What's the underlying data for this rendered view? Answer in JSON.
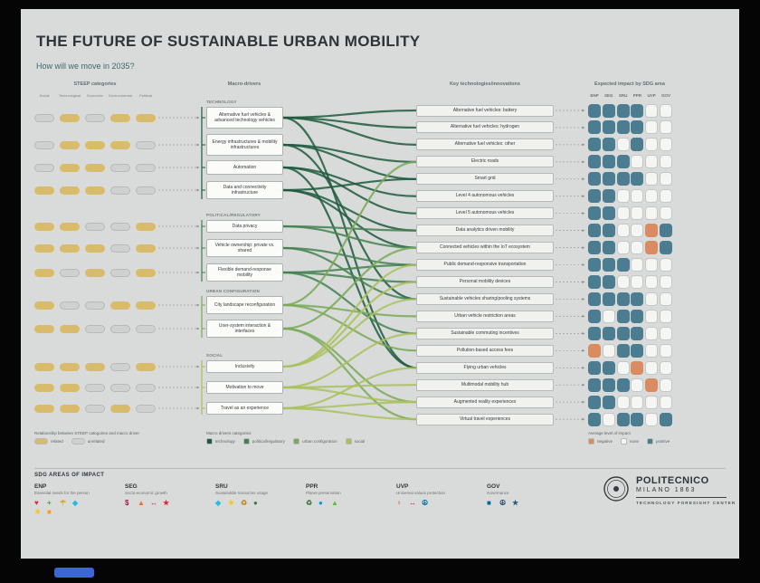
{
  "header": {
    "title": "THE FUTURE OF SUSTAINABLE URBAN MOBILITY",
    "subtitle": "How will we move in 2035?"
  },
  "columns": {
    "steep": "STEEP categories",
    "drivers": "Macro-drivers",
    "tech": "Key technologies/innovations",
    "impact": "Expected impact by SDG area"
  },
  "steep": {
    "categories": [
      "Social",
      "Technological",
      "Economic",
      "Environmental",
      "Political"
    ],
    "related_color": "#d8bc6b",
    "unrelated_color": "#ced1d0"
  },
  "driver_groups": [
    {
      "name": "TECHNOLOGY",
      "color": "#1f5a3d",
      "drivers": [
        {
          "label": "Alternative fuel vehicles & advanced technology vehicles",
          "steep": [
            0,
            1,
            0,
            1,
            1
          ]
        },
        {
          "label": "Energy infrastructures & mobility infrastructures",
          "steep": [
            0,
            1,
            1,
            1,
            0
          ]
        },
        {
          "label": "Automation",
          "steep": [
            0,
            1,
            1,
            0,
            0
          ]
        },
        {
          "label": "Data and connectivity infrastructure",
          "steep": [
            1,
            1,
            1,
            0,
            0
          ]
        }
      ]
    },
    {
      "name": "POLITICAL/REGULATORY",
      "color": "#43814f",
      "drivers": [
        {
          "label": "Data privacy",
          "steep": [
            1,
            1,
            0,
            0,
            1
          ]
        },
        {
          "label": "Vehicle ownership: private vs. shared",
          "steep": [
            1,
            1,
            1,
            0,
            1
          ]
        },
        {
          "label": "Flexible demand-response mobility",
          "steep": [
            1,
            0,
            1,
            0,
            1
          ]
        }
      ]
    },
    {
      "name": "URBAN CONFIGURATION",
      "color": "#79a957",
      "drivers": [
        {
          "label": "City landscape reconfiguration",
          "steep": [
            1,
            0,
            0,
            1,
            1
          ]
        },
        {
          "label": "User-system interaction & interfaces",
          "steep": [
            1,
            1,
            0,
            0,
            0
          ]
        }
      ]
    },
    {
      "name": "SOCIAL",
      "color": "#aabf5c",
      "drivers": [
        {
          "label": "Inclusivity",
          "steep": [
            1,
            1,
            1,
            0,
            1
          ]
        },
        {
          "label": "Motivation to move",
          "steep": [
            1,
            1,
            0,
            0,
            0
          ]
        },
        {
          "label": "Travel as an experience",
          "steep": [
            1,
            1,
            0,
            1,
            0
          ]
        }
      ]
    }
  ],
  "technologies": [
    "Alternative fuel vehicles: battery",
    "Alternative fuel vehicles: hydrogen",
    "Alternative fuel vehicles: other",
    "Electric roads",
    "Smart grid",
    "Level 4 autonomous vehicles",
    "Level 5 autonomous vehicles",
    "Data analytics driven mobility",
    "Connected vehicles within the IoT ecosystem",
    "Public demand-responsive transportation",
    "Personal mobility devices",
    "Sustainable vehicles sharing/pooling systems",
    "Urban vehicle restriction areas",
    "Sustainable commuting incentives",
    "Pollution-based access fees",
    "Flying urban vehicles",
    "Multimodal mobility hub",
    "Augmented reality experiences",
    "Virtual travel experiences"
  ],
  "impact": {
    "columns": [
      "ENP",
      "SEG",
      "SRU",
      "PPR",
      "UVP",
      "GOV"
    ],
    "colors": {
      "positive": "#4c7c90",
      "negative": "#db8b60",
      "none": "#f5f6f4"
    },
    "rows": [
      "PPPPNN",
      "PPPPNN",
      "PPNPNN",
      "PPPNNN",
      "PPPPNN",
      "PPNNNN",
      "PPNNNN",
      "PPNNMP",
      "PPNNMP",
      "PPPNNN",
      "PPNNNN",
      "PPPPNN",
      "PNPPNN",
      "PPPPNN",
      "MNPPNN",
      "PPNMNN",
      "PPPNMN",
      "PPNNNN",
      "PNPPNP"
    ]
  },
  "links": [
    [
      0,
      0
    ],
    [
      0,
      1
    ],
    [
      0,
      2
    ],
    [
      0,
      15
    ],
    [
      1,
      3
    ],
    [
      1,
      4
    ],
    [
      1,
      11
    ],
    [
      2,
      5
    ],
    [
      2,
      6
    ],
    [
      2,
      15
    ],
    [
      3,
      4
    ],
    [
      3,
      7
    ],
    [
      3,
      8
    ],
    [
      4,
      7
    ],
    [
      4,
      8
    ],
    [
      5,
      9
    ],
    [
      5,
      11
    ],
    [
      6,
      9
    ],
    [
      6,
      10
    ],
    [
      6,
      13
    ],
    [
      7,
      3
    ],
    [
      7,
      12
    ],
    [
      7,
      14
    ],
    [
      8,
      8
    ],
    [
      8,
      17
    ],
    [
      8,
      18
    ],
    [
      9,
      9
    ],
    [
      9,
      10
    ],
    [
      9,
      11
    ],
    [
      10,
      13
    ],
    [
      10,
      16
    ],
    [
      10,
      17
    ],
    [
      11,
      15
    ],
    [
      11,
      17
    ],
    [
      11,
      18
    ]
  ],
  "legends": {
    "steep": {
      "title": "Relationship between STEEP categories and macro driver",
      "items": [
        {
          "label": "related",
          "color": "#d8bc6b"
        },
        {
          "label": "unrelated",
          "color": "#ced1d0"
        }
      ]
    },
    "drivers": {
      "title": "Macro drivers categories:",
      "items": [
        {
          "label": "technology",
          "color": "#1f5a3d"
        },
        {
          "label": "political/regulatory",
          "color": "#43814f"
        },
        {
          "label": "urban configuration",
          "color": "#79a957"
        },
        {
          "label": "social",
          "color": "#aabf5c"
        }
      ]
    },
    "impact": {
      "title": "Average level of impact",
      "items": [
        {
          "label": "negative",
          "color": "#db8b60"
        },
        {
          "label": "none",
          "color": "#f5f6f4"
        },
        {
          "label": "positive",
          "color": "#4c7c90"
        }
      ]
    }
  },
  "sdg": {
    "title": "SDG AREAS OF IMPACT",
    "groups": [
      {
        "code": "ENP",
        "desc": "Essential needs for the person",
        "icons": [
          {
            "g": "♥",
            "c": "#e5243b"
          },
          {
            "g": "+",
            "c": "#4C9F38"
          },
          {
            "g": "☂",
            "c": "#DDA63A"
          },
          {
            "g": "◆",
            "c": "#26BDE2"
          },
          {
            "g": "☀",
            "c": "#FCC30B"
          },
          {
            "g": "■",
            "c": "#FD9D24"
          }
        ]
      },
      {
        "code": "SEG",
        "desc": "Socio-economic growth",
        "icons": [
          {
            "g": "$",
            "c": "#A21942"
          },
          {
            "g": "▲",
            "c": "#FD6925"
          },
          {
            "g": "↔",
            "c": "#DD1367"
          },
          {
            "g": "★",
            "c": "#E5243B"
          }
        ]
      },
      {
        "code": "SRU",
        "desc": "Sustainable resources usage",
        "icons": [
          {
            "g": "◆",
            "c": "#26BDE2"
          },
          {
            "g": "☀",
            "c": "#FCC30B"
          },
          {
            "g": "♻",
            "c": "#BF8B2E"
          },
          {
            "g": "●",
            "c": "#3F7E44"
          }
        ]
      },
      {
        "code": "PPR",
        "desc": "Planet preservation",
        "icons": [
          {
            "g": "♻",
            "c": "#3F7E44"
          },
          {
            "g": "●",
            "c": "#0A97D9"
          },
          {
            "g": "▲",
            "c": "#56C02B"
          }
        ]
      },
      {
        "code": "UVP",
        "desc": "Universal values protection",
        "icons": [
          {
            "g": "♀",
            "c": "#FF3A21"
          },
          {
            "g": "↔",
            "c": "#DD1367"
          },
          {
            "g": "☮",
            "c": "#00689D"
          }
        ]
      },
      {
        "code": "GOV",
        "desc": "Governance",
        "icons": [
          {
            "g": "■",
            "c": "#00689D"
          },
          {
            "g": "☮",
            "c": "#19486A"
          },
          {
            "g": "★",
            "c": "#2a5a7a"
          }
        ]
      }
    ]
  },
  "logo": {
    "name": "POLITECNICO",
    "sub": "MILANO 1863",
    "dept": "TECHNOLOGY FORESIGHT CENTER"
  }
}
